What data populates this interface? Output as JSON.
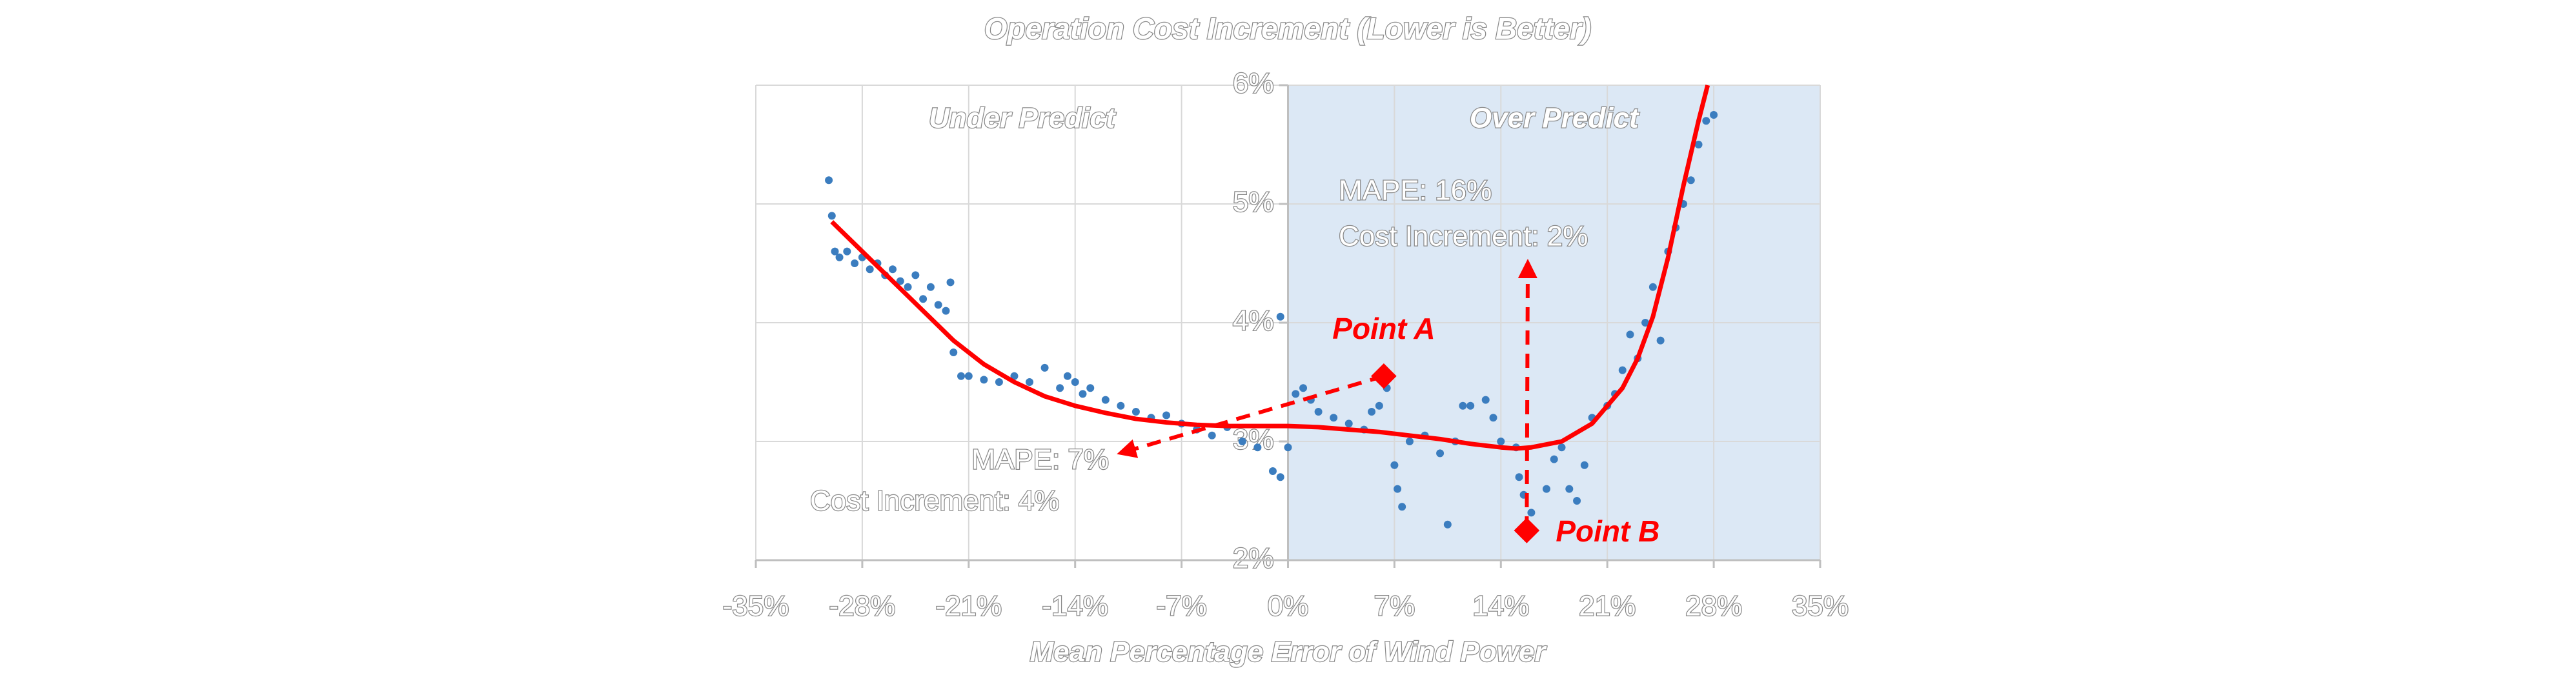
{
  "chart_data": {
    "type": "scatter",
    "title": "Operation Cost Increment (Lower is Better)",
    "x_label": "Mean Percentage Error of Wind Power",
    "xlim": [
      -35,
      35
    ],
    "ylim": [
      2,
      6
    ],
    "xticks": [
      {
        "value": -35,
        "label": "-35%"
      },
      {
        "value": -28,
        "label": "-28%"
      },
      {
        "value": -21,
        "label": "-21%"
      },
      {
        "value": -14,
        "label": "-14%"
      },
      {
        "value": -7,
        "label": "-7%"
      },
      {
        "value": 0,
        "label": "0%"
      },
      {
        "value": 7,
        "label": "7%"
      },
      {
        "value": 14,
        "label": "14%"
      },
      {
        "value": 21,
        "label": "21%"
      },
      {
        "value": 28,
        "label": "28%"
      },
      {
        "value": 35,
        "label": "35%"
      }
    ],
    "yticks": [
      {
        "value": 2,
        "label": "2%"
      },
      {
        "value": 3,
        "label": "3%"
      },
      {
        "value": 4,
        "label": "4%"
      },
      {
        "value": 5,
        "label": "5%"
      },
      {
        "value": 6,
        "label": "6%"
      }
    ],
    "grid": true,
    "regions": [
      {
        "label": "Under Predict",
        "xlim": [
          -35,
          0
        ],
        "color": "#ffffff"
      },
      {
        "label": "Over Predict",
        "xlim": [
          0,
          35
        ],
        "color": "#dce8f5"
      }
    ],
    "series": [
      {
        "type": "scatter",
        "color": "#3b7dbf",
        "x": [
          -30.2,
          -30,
          -29.8,
          -29.5,
          -29,
          -28.5,
          -28,
          -27.5,
          -27,
          -26.5,
          -26,
          -25.5,
          -25,
          -24.5,
          -24,
          -23.5,
          -23,
          -22.5,
          -22.2,
          -22,
          -21.5,
          -21,
          -20,
          -19,
          -18,
          -17,
          -16,
          -15,
          -14.5,
          -14,
          -13.5,
          -13,
          -12,
          -11,
          -10,
          -9,
          -8,
          -7,
          -6,
          -5,
          -4,
          -3,
          -2,
          -1,
          -0.5,
          -0.5,
          0,
          0.5,
          1,
          1.5,
          2,
          3,
          4,
          5,
          5.5,
          6,
          6.5,
          7,
          7.2,
          7.5,
          8,
          9,
          10,
          10.5,
          11,
          11.5,
          12,
          13,
          13.5,
          14,
          15,
          15.2,
          15.5,
          16,
          17,
          17.5,
          18,
          18.5,
          19,
          19.5,
          20,
          21,
          21.5,
          22,
          22.5,
          23,
          23.5,
          24,
          24.5,
          25,
          25.5,
          26,
          26.5,
          27,
          27.5,
          28
        ],
        "values": [
          5.2,
          4.9,
          4.6,
          4.55,
          4.6,
          4.5,
          4.55,
          4.45,
          4.5,
          4.4,
          4.45,
          4.35,
          4.3,
          4.4,
          4.2,
          4.3,
          4.15,
          4.1,
          4.34,
          3.75,
          3.55,
          3.55,
          3.52,
          3.5,
          3.55,
          3.5,
          3.62,
          3.45,
          3.55,
          3.5,
          3.4,
          3.45,
          3.35,
          3.3,
          3.25,
          3.2,
          3.22,
          3.15,
          3.1,
          3.05,
          3.12,
          3.0,
          2.95,
          2.75,
          2.7,
          4.05,
          2.95,
          3.4,
          3.45,
          3.35,
          3.25,
          3.2,
          3.15,
          3.1,
          3.25,
          3.3,
          3.45,
          2.8,
          2.6,
          2.45,
          3.0,
          3.05,
          2.9,
          2.3,
          3.0,
          3.3,
          3.3,
          3.35,
          3.2,
          3.0,
          2.95,
          2.7,
          2.55,
          2.4,
          2.6,
          2.85,
          2.95,
          2.6,
          2.5,
          2.8,
          3.2,
          3.3,
          3.4,
          3.6,
          3.9,
          3.7,
          4.0,
          4.3,
          3.85,
          4.6,
          4.8,
          5.0,
          5.2,
          5.5,
          5.7,
          5.75
        ]
      },
      {
        "type": "line",
        "color": "#ff0000",
        "x": [
          -30,
          -28,
          -26,
          -24,
          -22,
          -20,
          -18,
          -16,
          -14,
          -12,
          -10,
          -8,
          -6,
          -4,
          -2,
          0,
          2,
          4,
          6,
          8,
          10,
          12,
          14,
          15,
          16,
          18,
          20,
          22,
          23,
          24,
          25,
          26,
          27,
          27.6
        ],
        "values": [
          4.85,
          4.6,
          4.35,
          4.1,
          3.85,
          3.65,
          3.5,
          3.38,
          3.3,
          3.24,
          3.19,
          3.16,
          3.14,
          3.13,
          3.13,
          3.13,
          3.12,
          3.1,
          3.08,
          3.05,
          3.02,
          2.98,
          2.95,
          2.94,
          2.95,
          3.0,
          3.15,
          3.45,
          3.7,
          4.05,
          4.55,
          5.15,
          5.7,
          6.0
        ]
      }
    ],
    "annotations": [
      {
        "label": "Point A",
        "x": 6.3,
        "y": 3.55,
        "text": [
          "MAPE: 7%",
          "Cost Increment: 4%"
        ]
      },
      {
        "label": "Point B",
        "x": 15.7,
        "y": 2.25,
        "text": [
          "MAPE: 16%",
          "Cost Increment: 2%"
        ]
      }
    ]
  }
}
